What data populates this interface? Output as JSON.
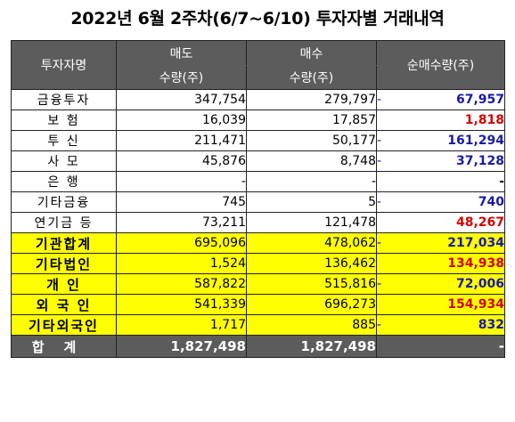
{
  "title": "2022년 6월 2주차(6/7~6/10) 투자자별 거래내역",
  "headers": {
    "investor": "투자자명",
    "sell_top": "매도",
    "sell_bottom": "수량(주)",
    "buy_top": "매수",
    "buy_bottom": "수량(주)",
    "net": "순매수량(주)"
  },
  "rows": [
    {
      "name": "금융투자",
      "sell": "347,754",
      "buy": "279,797",
      "sign": "-",
      "net": "67,957",
      "net_color": "blue",
      "highlight": false
    },
    {
      "name": "보    험",
      "sell": "16,039",
      "buy": "17,857",
      "sign": "",
      "net": "1,818",
      "net_color": "red",
      "highlight": false
    },
    {
      "name": "투    신",
      "sell": "211,471",
      "buy": "50,177",
      "sign": "-",
      "net": "161,294",
      "net_color": "blue",
      "highlight": false
    },
    {
      "name": "사    모",
      "sell": "45,876",
      "buy": "8,748",
      "sign": "-",
      "net": "37,128",
      "net_color": "blue",
      "highlight": false
    },
    {
      "name": "은    행",
      "sell": "-",
      "buy": "-",
      "sign": "",
      "net": "-",
      "net_color": "black",
      "highlight": false
    },
    {
      "name": "기타금융",
      "sell": "745",
      "buy": "5",
      "sign": "-",
      "net": "740",
      "net_color": "blue",
      "highlight": false
    },
    {
      "name": "연기금 등",
      "sell": "73,211",
      "buy": "121,478",
      "sign": "",
      "net": "48,267",
      "net_color": "red",
      "highlight": false
    },
    {
      "name": "기관합계",
      "sell": "695,096",
      "buy": "478,062",
      "sign": "-",
      "net": "217,034",
      "net_color": "blue",
      "highlight": true
    },
    {
      "name": "기타법인",
      "sell": "1,524",
      "buy": "136,462",
      "sign": "",
      "net": "134,938",
      "net_color": "red",
      "highlight": true
    },
    {
      "name": "개    인",
      "sell": "587,822",
      "buy": "515,816",
      "sign": "-",
      "net": "72,006",
      "net_color": "blue",
      "highlight": true
    },
    {
      "name": "외 국 인",
      "sell": "541,339",
      "buy": "696,273",
      "sign": "",
      "net": "154,934",
      "net_color": "red",
      "highlight": true
    },
    {
      "name": "기타외국인",
      "sell": "1,717",
      "buy": "885",
      "sign": "-",
      "net": "832",
      "net_color": "blue",
      "highlight": true
    }
  ],
  "total": {
    "name": "합계",
    "sell": "1,827,498",
    "buy": "1,827,498",
    "net": "-"
  },
  "colors": {
    "header_bg": "#5c5c5c",
    "highlight": "#ffff00",
    "positive": "#d40000",
    "negative": "#1a1aa8"
  }
}
